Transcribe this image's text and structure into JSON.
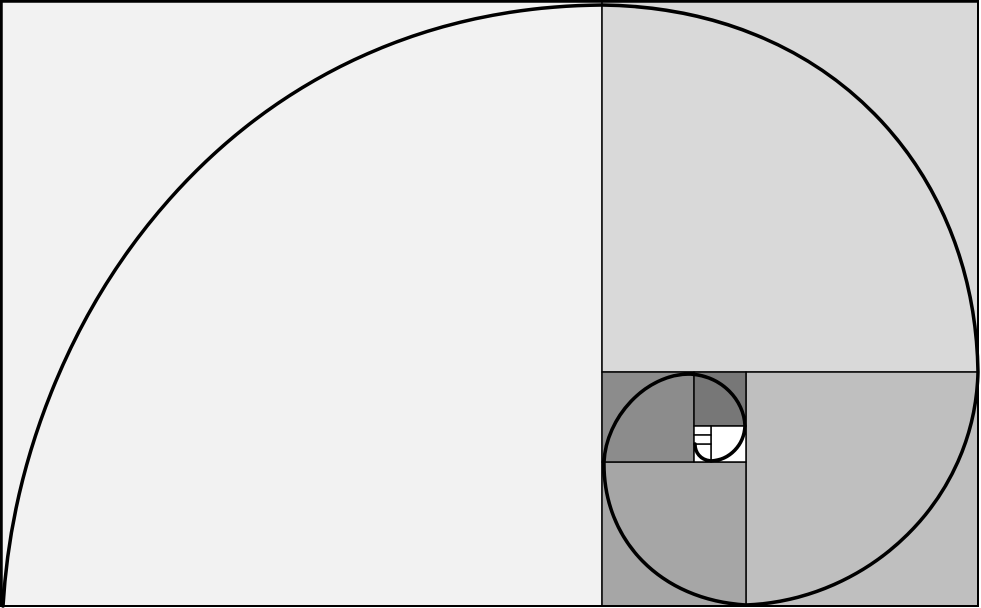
{
  "diagram": {
    "type": "golden-spiral",
    "squares": [
      {
        "id": "sq-1",
        "order": 1,
        "color": "#f2f2f2"
      },
      {
        "id": "sq-2",
        "order": 2,
        "color": "#d9d9d9"
      },
      {
        "id": "sq-3",
        "order": 3,
        "color": "#bfbfbf"
      },
      {
        "id": "sq-4",
        "order": 4,
        "color": "#a6a6a6"
      },
      {
        "id": "sq-5",
        "order": 5,
        "color": "#8c8c8c"
      },
      {
        "id": "sq-6",
        "order": 6,
        "color": "#777777"
      },
      {
        "id": "sq-7",
        "order": 7,
        "color": "#ffffff"
      },
      {
        "id": "sq-8",
        "order": 8,
        "color": "#ffffff"
      },
      {
        "id": "sq-9",
        "order": 9,
        "color": "#ffffff"
      },
      {
        "id": "sq-10",
        "order": 10,
        "color": "#ffffff"
      }
    ],
    "spiral_color": "#000000",
    "frame_color": "#000000"
  }
}
